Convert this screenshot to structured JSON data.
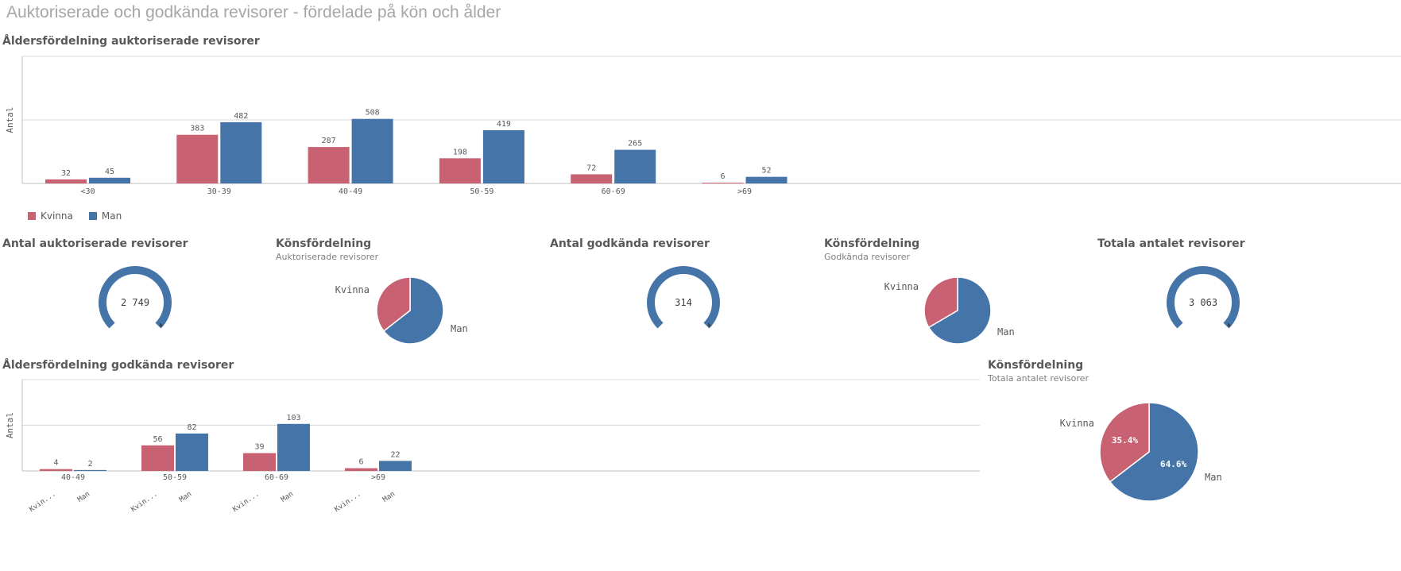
{
  "page": {
    "title": "Auktoriserade och godkända revisorer - fördelade på kön och ålder"
  },
  "colors": {
    "kvinna": "#c86272",
    "man": "#4474a8",
    "grid": "#d9d9d9",
    "axis": "#bfbfbf"
  },
  "legend": [
    {
      "label": "Kvinna",
      "color": "#c86272"
    },
    {
      "label": "Man",
      "color": "#4474a8"
    }
  ],
  "kpi": [
    {
      "title": "Antal auktoriserade revisorer",
      "value_text": "2 749"
    },
    {
      "title": "Antal godkända revisorer",
      "value_text": "314"
    },
    {
      "title": "Totala antalet revisorer",
      "value_text": "3 063"
    }
  ],
  "pies": [
    {
      "title": "Könsfördelning",
      "subtitle": "Auktoriserade revisorer",
      "labels": [
        "Kvinna",
        "Man"
      ]
    },
    {
      "title": "Könsfördelning",
      "subtitle": "Godkända revisorer",
      "labels": [
        "Kvinna",
        "Man"
      ]
    },
    {
      "title": "Könsfördelning",
      "subtitle": "Totala antalet revisorer",
      "labels": [
        "Kvinna",
        "Man"
      ],
      "slice_labels": [
        "35.4%",
        "64.6%"
      ]
    }
  ],
  "chart_data": [
    {
      "type": "bar",
      "title": "Åldersfördelning auktoriserade revisorer",
      "ylabel": "Antal",
      "xlabel": "",
      "categories": [
        "<30",
        "30-39",
        "40-49",
        "50-59",
        "60-69",
        ">69"
      ],
      "series": [
        {
          "name": "Kvinna",
          "values": [
            32,
            383,
            287,
            198,
            72,
            6
          ]
        },
        {
          "name": "Man",
          "values": [
            45,
            482,
            508,
            419,
            265,
            52
          ]
        }
      ],
      "ylim": [
        0,
        1000
      ],
      "grid": true,
      "legend_position": "bottom-left"
    },
    {
      "type": "bar",
      "title": "Åldersfördelning godkända revisorer",
      "ylabel": "Antal",
      "xlabel": "",
      "categories": [
        "40-49",
        "50-59",
        "60-69",
        ">69"
      ],
      "subcategory_labels": [
        "Kvin...",
        "Man"
      ],
      "series": [
        {
          "name": "Kvinna",
          "values": [
            4,
            56,
            39,
            6
          ]
        },
        {
          "name": "Man",
          "values": [
            2,
            82,
            103,
            22
          ]
        }
      ],
      "ylim": [
        0,
        200
      ],
      "grid": true
    },
    {
      "type": "pie",
      "title": "Könsfördelning",
      "subtitle": "Auktoriserade revisorer",
      "categories": [
        "Kvinna",
        "Man"
      ],
      "values": [
        978,
        1771
      ]
    },
    {
      "type": "pie",
      "title": "Könsfördelning",
      "subtitle": "Godkända revisorer",
      "categories": [
        "Kvinna",
        "Man"
      ],
      "values": [
        105,
        209
      ]
    },
    {
      "type": "pie",
      "title": "Könsfördelning",
      "subtitle": "Totala antalet revisorer",
      "categories": [
        "Kvinna",
        "Man"
      ],
      "values": [
        35.4,
        64.6
      ]
    },
    {
      "type": "gauge",
      "title": "Antal auktoriserade revisorer",
      "value": 2749
    },
    {
      "type": "gauge",
      "title": "Antal godkända revisorer",
      "value": 314
    },
    {
      "type": "gauge",
      "title": "Totala antalet revisorer",
      "value": 3063
    }
  ]
}
